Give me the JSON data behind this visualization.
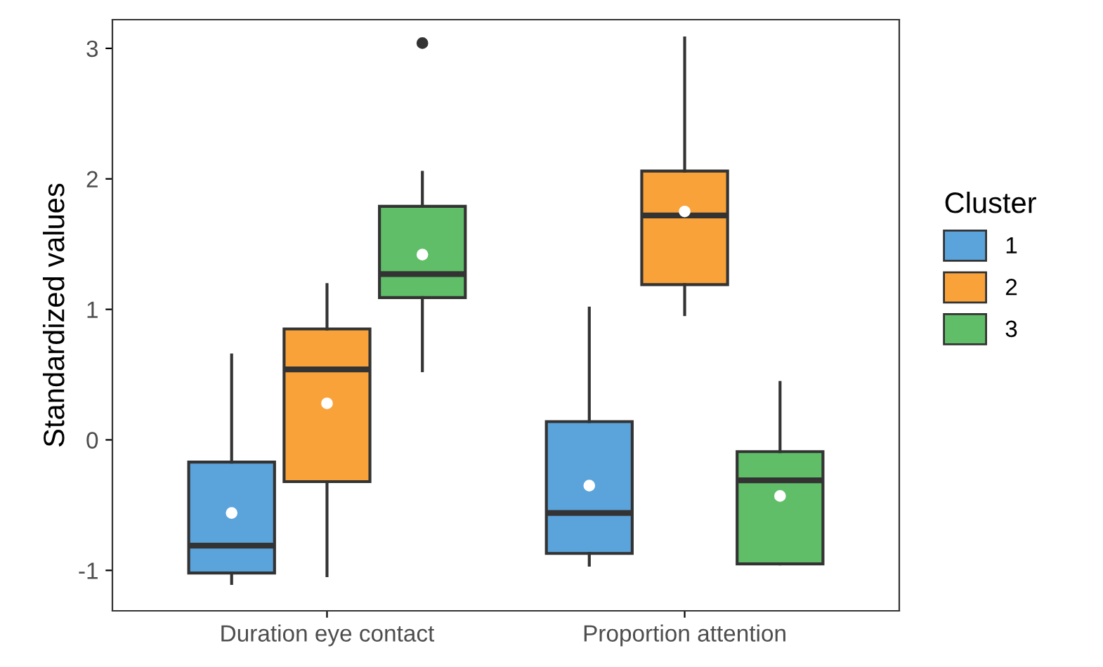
{
  "chart_data": {
    "type": "box",
    "ylabel": "Standardized values",
    "legend_title": "Cluster",
    "legend": "right",
    "grid": false,
    "categories": [
      "Duration eye contact",
      "Proportion attention"
    ],
    "ylim": [
      -1.31,
      3.22
    ],
    "yticks": [
      -1,
      0,
      1,
      2,
      3
    ],
    "series": [
      {
        "name": "1",
        "color": "#5ba3db",
        "boxes": [
          {
            "low": -1.1,
            "q1": -1.02,
            "median": -0.81,
            "q3": -0.17,
            "high": 0.65,
            "mean": -0.56
          },
          {
            "low": -0.96,
            "q1": -0.87,
            "median": -0.56,
            "q3": 0.14,
            "high": 1.01,
            "mean": -0.35
          }
        ]
      },
      {
        "name": "2",
        "color": "#f9a23a",
        "boxes": [
          {
            "low": -1.04,
            "q1": -0.32,
            "median": 0.54,
            "q3": 0.85,
            "high": 1.19,
            "mean": 0.28
          },
          {
            "low": 0.96,
            "q1": 1.19,
            "median": 1.72,
            "q3": 2.06,
            "high": 3.08,
            "mean": 1.75
          }
        ]
      },
      {
        "name": "3",
        "color": "#5fbe67",
        "boxes": [
          {
            "low": 0.53,
            "q1": 1.09,
            "median": 1.27,
            "q3": 1.79,
            "high": 2.05,
            "mean": 1.42,
            "outliers": [
              3.04
            ]
          },
          {
            "low": -0.95,
            "q1": -0.95,
            "median": -0.31,
            "q3": -0.09,
            "high": 0.44,
            "mean": -0.43
          }
        ]
      }
    ]
  }
}
